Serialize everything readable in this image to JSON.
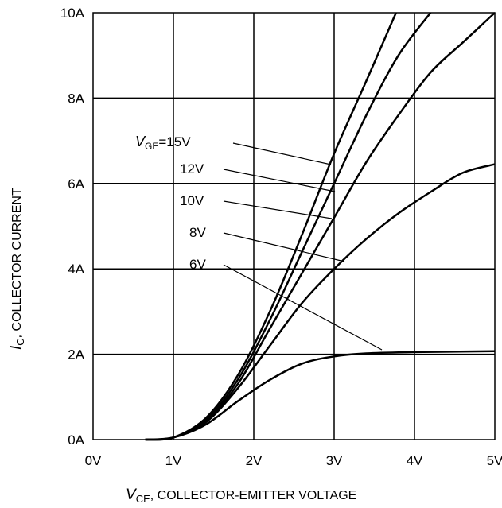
{
  "chart_data": {
    "type": "line",
    "xlabel": {
      "symbol": "V",
      "subscript": "CE",
      "text": ", COLLECTOR-EMITTER VOLTAGE"
    },
    "ylabel": {
      "symbol": "I",
      "subscript": "C",
      "text": ", COLLECTOR CURRENT"
    },
    "xlim": [
      0,
      5
    ],
    "ylim": [
      0,
      10
    ],
    "grid": true,
    "x_ticks": [
      0,
      1,
      2,
      3,
      4,
      5
    ],
    "x_tick_labels": [
      "0V",
      "1V",
      "2V",
      "3V",
      "4V",
      "5V"
    ],
    "y_ticks": [
      0,
      2,
      4,
      6,
      8,
      10
    ],
    "y_tick_labels": [
      "0A",
      "2A",
      "4A",
      "6A",
      "8A",
      "10A"
    ],
    "series": [
      {
        "name": "15V",
        "points": [
          [
            0.65,
            0
          ],
          [
            1.0,
            0.05
          ],
          [
            1.4,
            0.5
          ],
          [
            1.8,
            1.5
          ],
          [
            2.2,
            3.0
          ],
          [
            2.6,
            4.8
          ],
          [
            3.0,
            6.7
          ],
          [
            3.4,
            8.4
          ],
          [
            3.77,
            10.0
          ]
        ]
      },
      {
        "name": "12V",
        "points": [
          [
            0.65,
            0
          ],
          [
            1.0,
            0.05
          ],
          [
            1.4,
            0.45
          ],
          [
            1.8,
            1.4
          ],
          [
            2.2,
            2.8
          ],
          [
            2.6,
            4.4
          ],
          [
            3.0,
            6.0
          ],
          [
            3.4,
            7.6
          ],
          [
            3.8,
            9.0
          ],
          [
            4.2,
            10.0
          ]
        ]
      },
      {
        "name": "10V",
        "points": [
          [
            0.65,
            0
          ],
          [
            1.0,
            0.05
          ],
          [
            1.4,
            0.42
          ],
          [
            1.8,
            1.3
          ],
          [
            2.2,
            2.6
          ],
          [
            2.6,
            3.9
          ],
          [
            3.0,
            5.2
          ],
          [
            3.4,
            6.5
          ],
          [
            3.8,
            7.6
          ],
          [
            4.2,
            8.6
          ],
          [
            4.6,
            9.3
          ],
          [
            5.0,
            10.0
          ]
        ]
      },
      {
        "name": "8V",
        "points": [
          [
            0.65,
            0
          ],
          [
            1.0,
            0.05
          ],
          [
            1.4,
            0.4
          ],
          [
            1.8,
            1.2
          ],
          [
            2.2,
            2.2
          ],
          [
            2.6,
            3.2
          ],
          [
            3.0,
            4.0
          ],
          [
            3.4,
            4.7
          ],
          [
            3.8,
            5.3
          ],
          [
            4.2,
            5.8
          ],
          [
            4.6,
            6.25
          ],
          [
            5.0,
            6.45
          ]
        ]
      },
      {
        "name": "6V",
        "points": [
          [
            0.65,
            0
          ],
          [
            1.0,
            0.05
          ],
          [
            1.4,
            0.35
          ],
          [
            1.8,
            0.9
          ],
          [
            2.2,
            1.4
          ],
          [
            2.6,
            1.78
          ],
          [
            3.0,
            1.95
          ],
          [
            3.4,
            2.02
          ],
          [
            4.0,
            2.05
          ],
          [
            5.0,
            2.07
          ]
        ]
      }
    ],
    "annotations": {
      "vge_prefix": {
        "symbol": "V",
        "subscript": "GE",
        "text": "=15V"
      },
      "labels": [
        "12V",
        "10V",
        "8V",
        "6V"
      ]
    }
  }
}
